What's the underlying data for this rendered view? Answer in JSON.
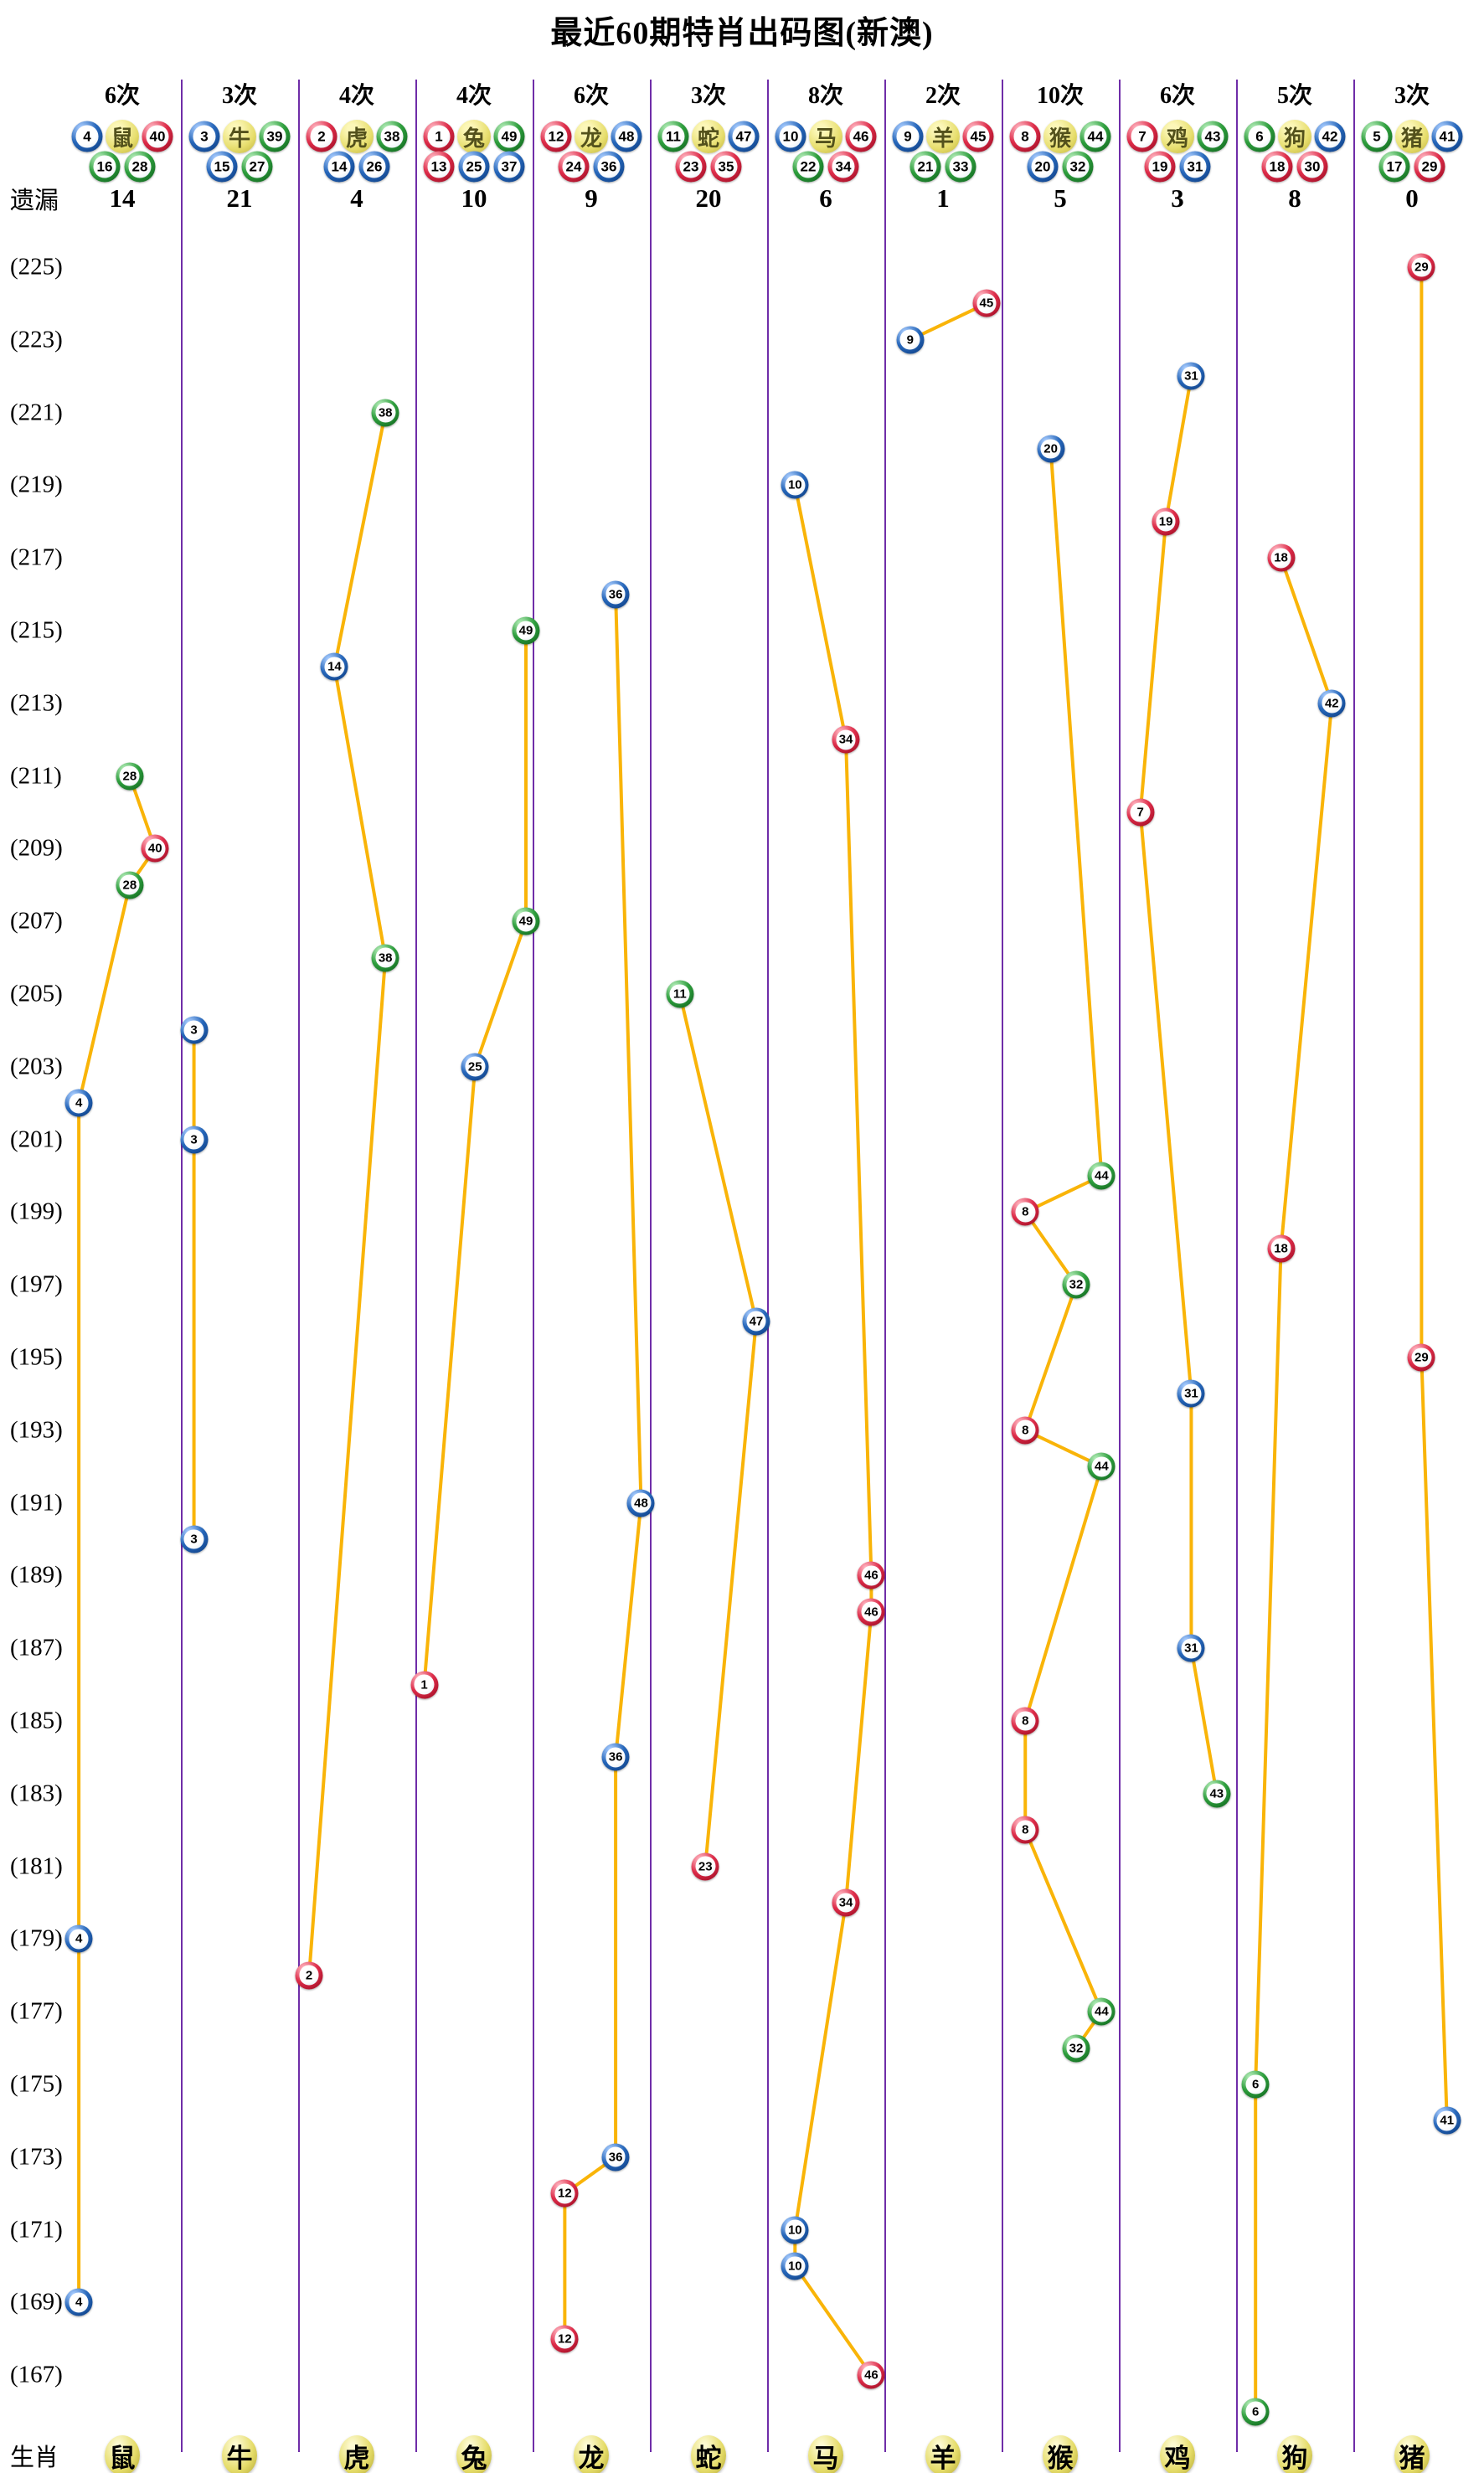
{
  "title": "最近60期特肖出码图(新澳)",
  "labels": {
    "miss": "遗漏",
    "zodiac": "生肖"
  },
  "row_labels": [
    "(225)",
    "(223)",
    "(221)",
    "(219)",
    "(217)",
    "(215)",
    "(213)",
    "(211)",
    "(209)",
    "(207)",
    "(205)",
    "(203)",
    "(201)",
    "(199)",
    "(197)",
    "(195)",
    "(193)",
    "(191)",
    "(189)",
    "(187)",
    "(185)",
    "(183)",
    "(181)",
    "(179)",
    "(177)",
    "(175)",
    "(173)",
    "(171)",
    "(169)",
    "(167)"
  ],
  "colors": {
    "separator": "#6f2da8",
    "line": "#f9b408",
    "red": "#dd2c49",
    "blue": "#2767ba",
    "green": "#2e9e3d",
    "yellow": "#e7de6e"
  },
  "ball_colors": {
    "red": [
      1,
      2,
      7,
      8,
      12,
      13,
      18,
      19,
      23,
      24,
      29,
      30,
      34,
      35,
      40,
      45,
      46
    ],
    "blue": [
      3,
      4,
      9,
      10,
      14,
      15,
      20,
      25,
      26,
      31,
      36,
      37,
      41,
      42,
      47,
      48
    ],
    "green": [
      5,
      6,
      11,
      16,
      17,
      21,
      22,
      27,
      28,
      32,
      33,
      38,
      39,
      43,
      44,
      49
    ]
  },
  "chart_data": {
    "type": "scatter",
    "y_axis": {
      "top_period": 225,
      "bottom_period": 166,
      "label_step": 2,
      "value_range": [
        1,
        49
      ]
    },
    "legend_note": "each column: count of appearances (次), zodiac number balls, missing periods (遗漏), and series of drawn balls by period",
    "columns": [
      {
        "zodiac": "鼠",
        "count": "6次",
        "miss": "14",
        "header_top": [
          "4",
          "40"
        ],
        "header_bottom": [
          "16",
          "28"
        ],
        "series": [
          {
            "v": 28,
            "p": 211
          },
          {
            "v": 40,
            "p": 209
          },
          {
            "v": 28,
            "p": 208
          },
          {
            "v": 4,
            "p": 202
          },
          {
            "v": 4,
            "p": 179
          },
          {
            "v": 4,
            "p": 169
          }
        ]
      },
      {
        "zodiac": "牛",
        "count": "3次",
        "miss": "21",
        "header_top": [
          "3",
          "39"
        ],
        "header_bottom": [
          "15",
          "27"
        ],
        "series": [
          {
            "v": 3,
            "p": 204
          },
          {
            "v": 3,
            "p": 201
          },
          {
            "v": 3,
            "p": 190
          }
        ]
      },
      {
        "zodiac": "虎",
        "count": "4次",
        "miss": "4",
        "header_top": [
          "2",
          "38"
        ],
        "header_bottom": [
          "14",
          "26"
        ],
        "series": [
          {
            "v": 38,
            "p": 221
          },
          {
            "v": 14,
            "p": 214
          },
          {
            "v": 38,
            "p": 206
          },
          {
            "v": 2,
            "p": 178
          }
        ]
      },
      {
        "zodiac": "兔",
        "count": "4次",
        "miss": "10",
        "header_top": [
          "1",
          "49"
        ],
        "header_bottom": [
          "13",
          "25",
          "37"
        ],
        "series": [
          {
            "v": 49,
            "p": 215
          },
          {
            "v": 49,
            "p": 207
          },
          {
            "v": 25,
            "p": 203
          },
          {
            "v": 1,
            "p": 186
          }
        ]
      },
      {
        "zodiac": "龙",
        "count": "6次",
        "miss": "9",
        "header_top": [
          "12",
          "48"
        ],
        "header_bottom": [
          "24",
          "36"
        ],
        "series": [
          {
            "v": 36,
            "p": 216
          },
          {
            "v": 48,
            "p": 191
          },
          {
            "v": 36,
            "p": 184
          },
          {
            "v": 36,
            "p": 173
          },
          {
            "v": 12,
            "p": 172
          },
          {
            "v": 12,
            "p": 168
          }
        ]
      },
      {
        "zodiac": "蛇",
        "count": "3次",
        "miss": "20",
        "header_top": [
          "11",
          "47"
        ],
        "header_bottom": [
          "23",
          "35"
        ],
        "series": [
          {
            "v": 11,
            "p": 205
          },
          {
            "v": 47,
            "p": 196
          },
          {
            "v": 23,
            "p": 181
          }
        ]
      },
      {
        "zodiac": "马",
        "count": "8次",
        "miss": "6",
        "header_top": [
          "10",
          "46"
        ],
        "header_bottom": [
          "22",
          "34"
        ],
        "series": [
          {
            "v": 10,
            "p": 219
          },
          {
            "v": 34,
            "p": 212
          },
          {
            "v": 46,
            "p": 189
          },
          {
            "v": 46,
            "p": 188
          },
          {
            "v": 34,
            "p": 180
          },
          {
            "v": 10,
            "p": 171
          },
          {
            "v": 10,
            "p": 170
          },
          {
            "v": 46,
            "p": 167
          }
        ]
      },
      {
        "zodiac": "羊",
        "count": "2次",
        "miss": "1",
        "header_top": [
          "9",
          "45"
        ],
        "header_bottom": [
          "21",
          "33"
        ],
        "series": [
          {
            "v": 45,
            "p": 224
          },
          {
            "v": 9,
            "p": 223
          }
        ]
      },
      {
        "zodiac": "猴",
        "count": "10次",
        "miss": "5",
        "header_top": [
          "8",
          "44"
        ],
        "header_bottom": [
          "20",
          "32"
        ],
        "series": [
          {
            "v": 20,
            "p": 220
          },
          {
            "v": 44,
            "p": 200
          },
          {
            "v": 8,
            "p": 199
          },
          {
            "v": 32,
            "p": 197
          },
          {
            "v": 8,
            "p": 193
          },
          {
            "v": 44,
            "p": 192
          },
          {
            "v": 8,
            "p": 185
          },
          {
            "v": 8,
            "p": 182
          },
          {
            "v": 44,
            "p": 177
          },
          {
            "v": 32,
            "p": 176
          }
        ]
      },
      {
        "zodiac": "鸡",
        "count": "6次",
        "miss": "3",
        "header_top": [
          "7",
          "43"
        ],
        "header_bottom": [
          "19",
          "31"
        ],
        "series": [
          {
            "v": 31,
            "p": 222
          },
          {
            "v": 19,
            "p": 218
          },
          {
            "v": 7,
            "p": 210
          },
          {
            "v": 31,
            "p": 194
          },
          {
            "v": 31,
            "p": 187
          },
          {
            "v": 43,
            "p": 183
          }
        ]
      },
      {
        "zodiac": "狗",
        "count": "5次",
        "miss": "8",
        "header_top": [
          "6",
          "42"
        ],
        "header_bottom": [
          "18",
          "30"
        ],
        "series": [
          {
            "v": 18,
            "p": 217
          },
          {
            "v": 42,
            "p": 213
          },
          {
            "v": 18,
            "p": 198
          },
          {
            "v": 6,
            "p": 175
          },
          {
            "v": 6,
            "p": 166
          }
        ]
      },
      {
        "zodiac": "猪",
        "count": "3次",
        "miss": "0",
        "header_top": [
          "5",
          "41"
        ],
        "header_bottom": [
          "17",
          "29"
        ],
        "series": [
          {
            "v": 29,
            "p": 225
          },
          {
            "v": 29,
            "p": 195
          },
          {
            "v": 41,
            "p": 174
          }
        ]
      }
    ]
  }
}
